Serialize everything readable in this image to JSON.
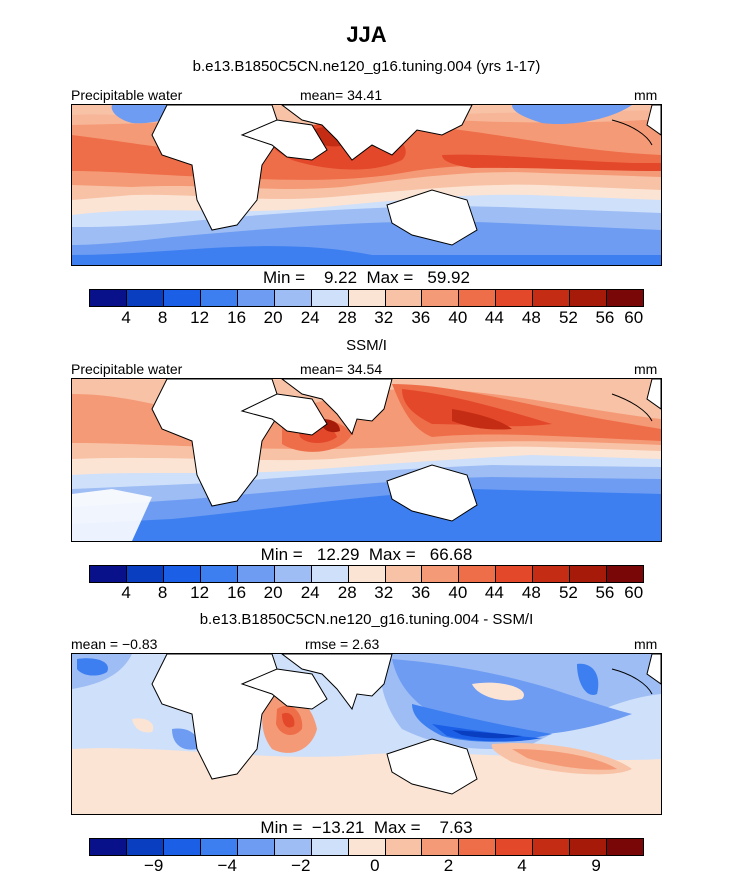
{
  "title": "JJA",
  "colors": {
    "abs_scale": [
      "#08108a",
      "#0a3ec0",
      "#1a5fe6",
      "#3d7ff0",
      "#6d9cf2",
      "#9dbdf4",
      "#cfe0fa",
      "#fbe4d4",
      "#f8c2a6",
      "#f59a76",
      "#ee6e4a",
      "#e3482a",
      "#c42d14",
      "#a61a0a",
      "#7a0707"
    ],
    "diff_scale": [
      "#08108a",
      "#0a3ec0",
      "#1a5fe6",
      "#3d7ff0",
      "#6d9cf2",
      "#9dbdf4",
      "#cfe0fa",
      "#fbe4d4",
      "#f8c2a6",
      "#f59a76",
      "#ee6e4a",
      "#e3482a",
      "#c42d14",
      "#a61a0a",
      "#7a0707"
    ],
    "land": "#ffffff"
  },
  "panels": [
    {
      "title": "b.e13.B1850C5CN.ne120_g16.tuning.004 (yrs 1-17)",
      "left_label": "Precipitable water",
      "center_label": "mean=  34.41",
      "right_label": "mm",
      "stats": "Min =    9.22  Max =   59.92",
      "ticks": [
        "4",
        "8",
        "12",
        "16",
        "20",
        "24",
        "28",
        "32",
        "36",
        "40",
        "44",
        "48",
        "52",
        "56",
        "60"
      ],
      "kind": "abs"
    },
    {
      "title": "SSM/I",
      "left_label": "Precipitable water",
      "center_label": "mean=  34.54",
      "right_label": "mm",
      "stats": "Min =   12.29  Max =   66.68",
      "ticks": [
        "4",
        "8",
        "12",
        "16",
        "20",
        "24",
        "28",
        "32",
        "36",
        "40",
        "44",
        "48",
        "52",
        "56",
        "60"
      ],
      "kind": "abs"
    },
    {
      "title": "b.e13.B1850C5CN.ne120_g16.tuning.004 - SSM/I",
      "left_label": "mean =  −0.83",
      "center_label": "rmse =   2.63",
      "right_label": "mm",
      "stats": "Min =  −13.21  Max =    7.63",
      "ticks": [
        "−9",
        "−4",
        "−2",
        "0",
        "2",
        "4",
        "9"
      ],
      "kind": "diff"
    }
  ]
}
